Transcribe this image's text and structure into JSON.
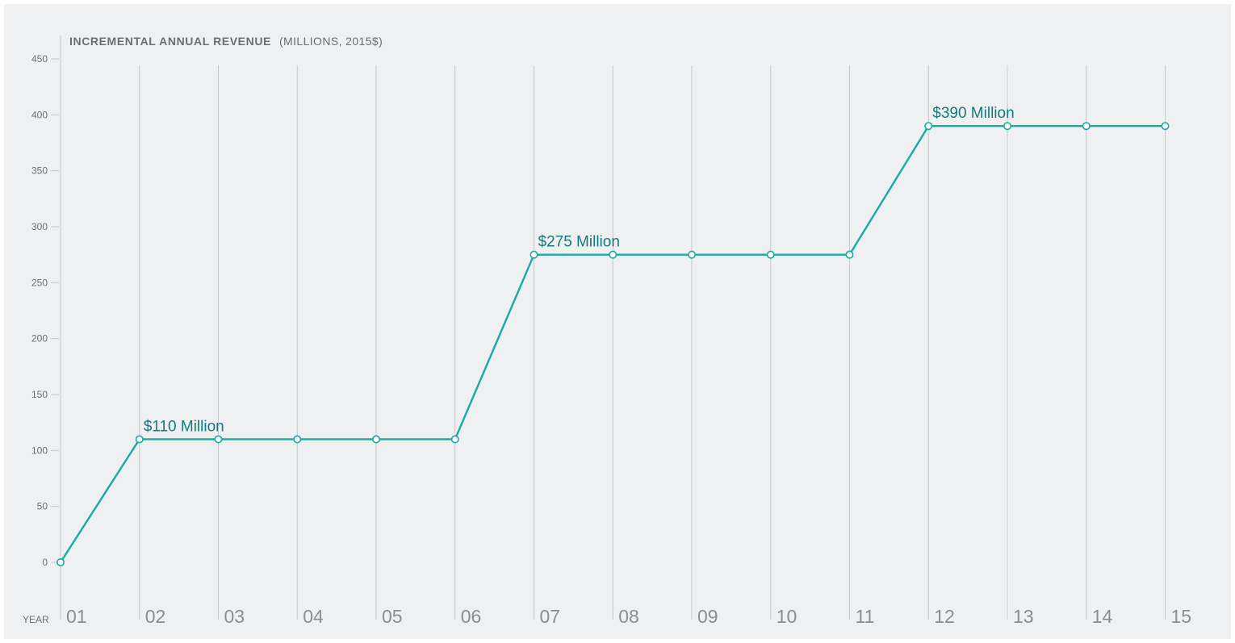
{
  "chart_data": {
    "type": "line",
    "title": "INCREMENTAL ANNUAL REVENUE",
    "title_units": "(MILLIONS, 2015$)",
    "xlabel": "YEAR",
    "ylabel": "",
    "categories": [
      "01",
      "02",
      "03",
      "04",
      "05",
      "06",
      "07",
      "08",
      "09",
      "10",
      "11",
      "12",
      "13",
      "14",
      "15"
    ],
    "values": [
      0,
      110,
      110,
      110,
      110,
      110,
      275,
      275,
      275,
      275,
      275,
      390,
      390,
      390,
      390
    ],
    "ylim": [
      0,
      450
    ],
    "yticks": [
      0,
      50,
      100,
      150,
      200,
      250,
      300,
      350,
      400,
      450
    ],
    "grid": "vertical",
    "annotations": [
      {
        "index": 1,
        "text": "$110 Million"
      },
      {
        "index": 6,
        "text": "$275 Million"
      },
      {
        "index": 11,
        "text": "$390 Million"
      }
    ],
    "colors": {
      "line": "#17aaa6",
      "marker_fill": "#ffffff",
      "annotation": "#137a80",
      "grid": "#c6c9cc",
      "background": "#eff0f1"
    }
  }
}
